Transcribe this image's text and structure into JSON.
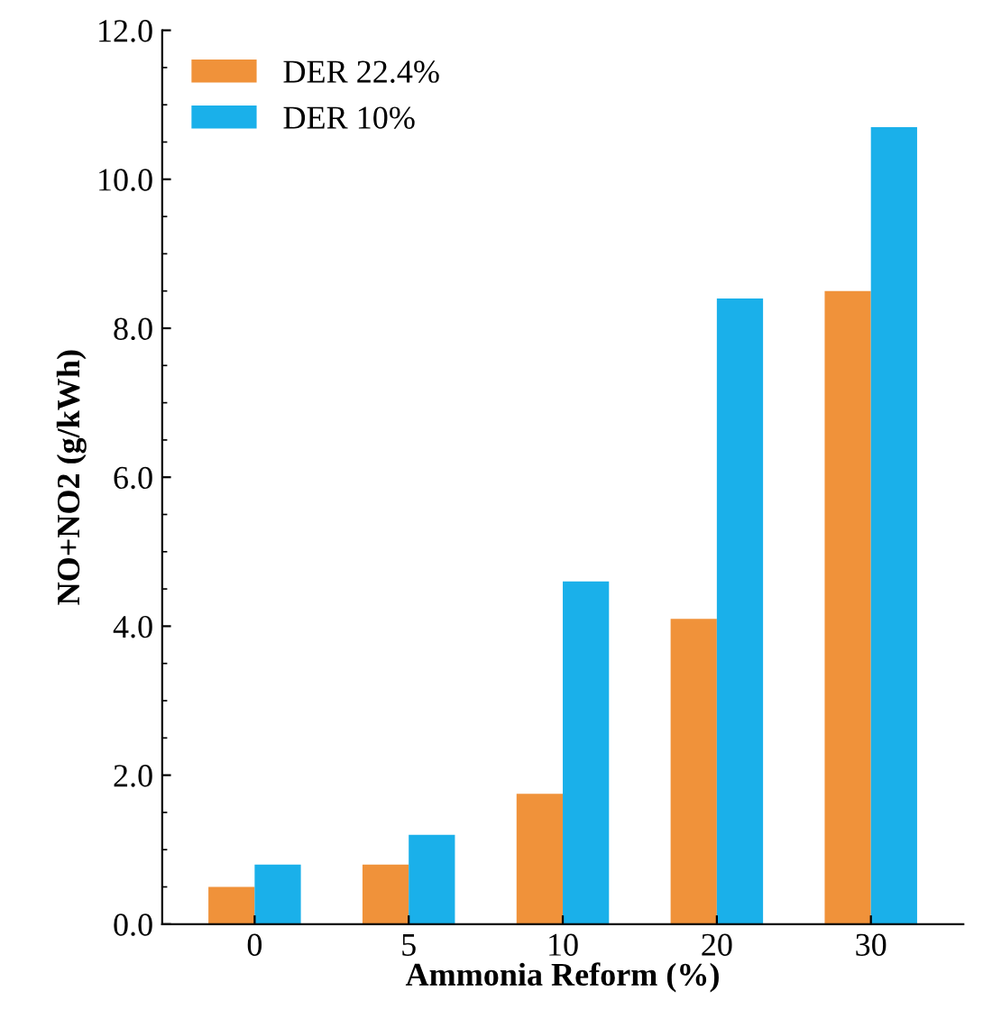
{
  "chart_data": {
    "type": "bar",
    "xlabel": "Ammonia Reform (%)",
    "ylabel": "NO+NO2 (g/kWh)",
    "categories": [
      "0",
      "5",
      "10",
      "20",
      "30"
    ],
    "series": [
      {
        "name": "DER 22.4%",
        "color": "#f0923a",
        "values": [
          0.5,
          0.8,
          1.75,
          4.1,
          8.5
        ]
      },
      {
        "name": "DER 10%",
        "color": "#1ab0ea",
        "values": [
          0.8,
          1.2,
          4.6,
          8.4,
          10.7
        ]
      }
    ],
    "ylim": [
      0,
      12
    ],
    "yticks": [
      {
        "value": 0,
        "label": "0.0"
      },
      {
        "value": 2,
        "label": "2.0"
      },
      {
        "value": 4,
        "label": "4.0"
      },
      {
        "value": 6,
        "label": "6.0"
      },
      {
        "value": 8,
        "label": "8.0"
      },
      {
        "value": 10,
        "label": "10.0"
      },
      {
        "value": 12,
        "label": "12.0"
      }
    ],
    "legend": "top left",
    "grid": false
  }
}
